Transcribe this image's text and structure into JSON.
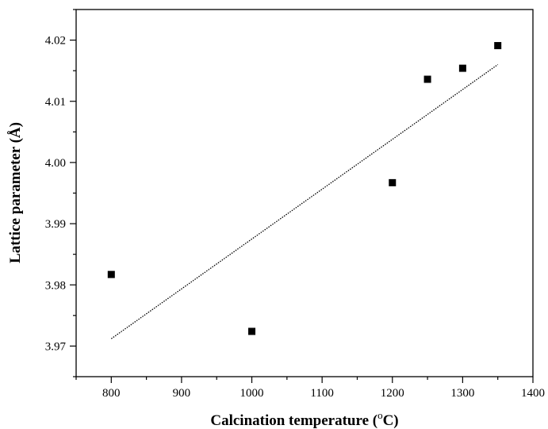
{
  "chart_data": {
    "type": "scatter",
    "title": "",
    "xlabel": "Calcination temperature (",
    "xlabel_unit_sup": "o",
    "xlabel_unit": "C)",
    "ylabel": "Lattice parameter (Å)",
    "xlim": [
      750,
      1400
    ],
    "ylim": [
      3.965,
      4.025
    ],
    "x_ticks": [
      800,
      900,
      1000,
      1100,
      1200,
      1300,
      1400
    ],
    "x_tick_labels": [
      "800",
      "900",
      "1000",
      "1100",
      "1200",
      "1300",
      "1400"
    ],
    "y_ticks": [
      3.97,
      3.98,
      3.99,
      4.0,
      4.01,
      4.02
    ],
    "y_tick_labels": [
      "3.97",
      "3.98",
      "3.99",
      "4.00",
      "4.01",
      "4.02"
    ],
    "grid": false,
    "series": [
      {
        "marker": "square",
        "color": "#000000",
        "x": [
          800,
          1000,
          1200,
          1250,
          1300,
          1350
        ],
        "y": [
          3.9817,
          3.9724,
          3.9967,
          4.0136,
          4.0154,
          4.0191
        ]
      }
    ],
    "trendline": {
      "style": "dotted",
      "color": "#000000",
      "x": [
        800,
        1350
      ],
      "y": [
        3.9712,
        4.016
      ]
    }
  }
}
